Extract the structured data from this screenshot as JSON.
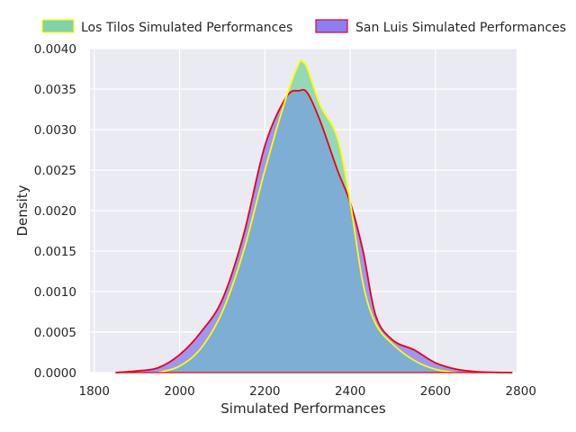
{
  "chart_data": {
    "type": "area",
    "title": "",
    "xlabel": "Simulated Performances",
    "ylabel": "Density",
    "xlim": [
      1790,
      2790
    ],
    "ylim": [
      0,
      0.004
    ],
    "xticks": [
      1800,
      2000,
      2200,
      2400,
      2600,
      2800
    ],
    "yticks": [
      0,
      0.0005,
      0.001,
      0.0015,
      0.002,
      0.0025,
      0.003,
      0.0035,
      0.004
    ],
    "xtick_labels": [
      "1800",
      "2000",
      "2200",
      "2400",
      "2600",
      "2800"
    ],
    "ytick_labels": [
      "0.0000",
      "0.0005",
      "0.0010",
      "0.0015",
      "0.0020",
      "0.0025",
      "0.0030",
      "0.0035",
      "0.0040"
    ],
    "grid": true,
    "legend_position": "top, above plot",
    "colors": {
      "background": "#eaeaf2",
      "grid": "#ffffff",
      "los_tilos_fill": "#7fd3a8",
      "los_tilos_line": "#ffff00",
      "san_luis_fill": "#8b7ff5",
      "san_luis_line": "#e8001c",
      "overlap": "#7eaed4"
    },
    "series": [
      {
        "name": "Los Tilos Simulated Performances",
        "x": [
          1950,
          2000,
          2050,
          2100,
          2150,
          2200,
          2250,
          2280,
          2290,
          2300,
          2330,
          2370,
          2400,
          2430,
          2460,
          2500,
          2550,
          2600,
          2650
        ],
        "y": [
          0.0,
          8e-05,
          0.0003,
          0.00075,
          0.0015,
          0.0025,
          0.0034,
          0.00382,
          0.00383,
          0.00375,
          0.0033,
          0.0029,
          0.0021,
          0.0011,
          0.0006,
          0.00035,
          0.00015,
          4e-05,
          0.0
        ]
      },
      {
        "name": "San Luis Simulated Performances",
        "x": [
          1850,
          1900,
          1950,
          2000,
          2050,
          2100,
          2150,
          2200,
          2250,
          2280,
          2300,
          2330,
          2370,
          2400,
          2430,
          2460,
          2500,
          2550,
          2600,
          2650,
          2700,
          2780
        ],
        "y": [
          0.0,
          2e-05,
          6e-05,
          0.00022,
          0.0005,
          0.0009,
          0.0017,
          0.0028,
          0.0034,
          0.00348,
          0.00345,
          0.0031,
          0.0025,
          0.0021,
          0.0015,
          0.0007,
          0.0004,
          0.00028,
          0.00012,
          4e-05,
          1e-05,
          0.0
        ]
      }
    ]
  }
}
